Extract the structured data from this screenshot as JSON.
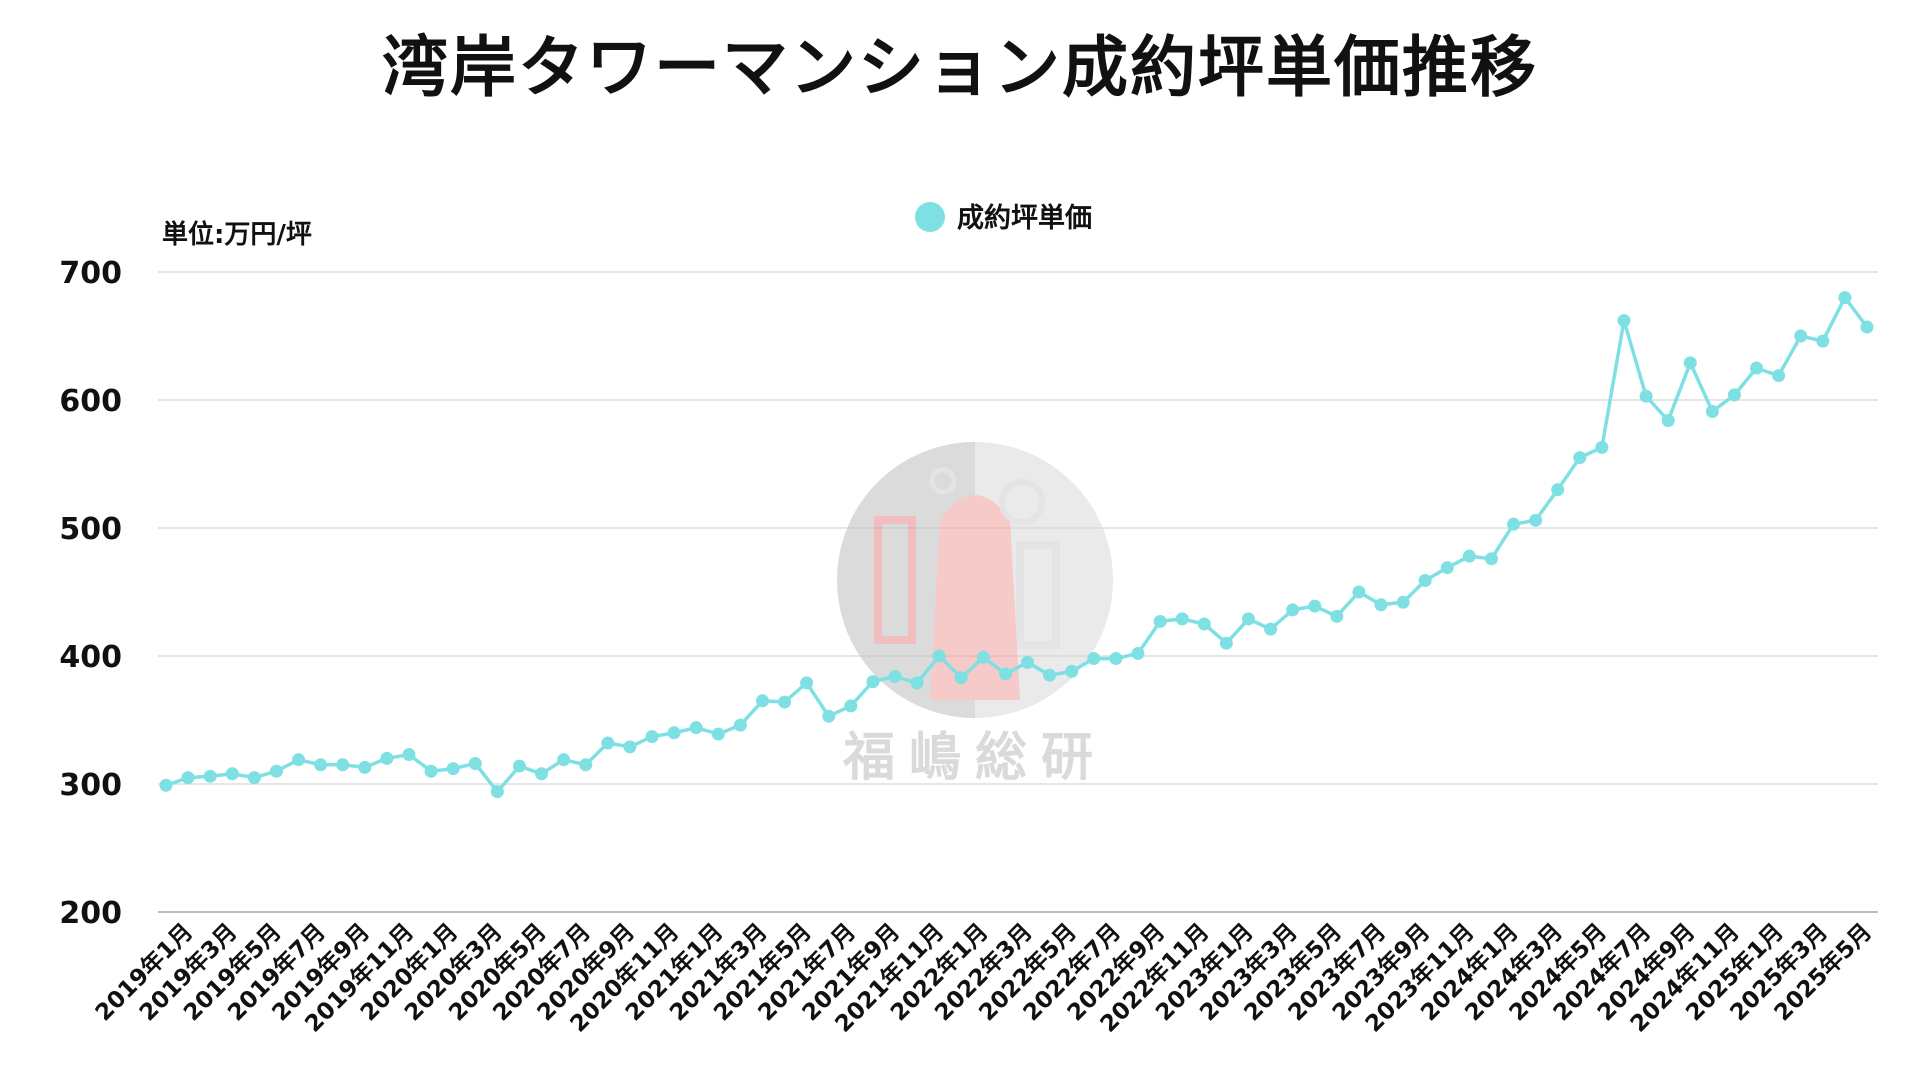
{
  "chart_data": {
    "type": "line",
    "title": "湾岸タワーマンション成約坪単価推移",
    "unit_label": "単位:万円/坪",
    "ylim": [
      200,
      700
    ],
    "y_ticks": [
      "200",
      "300",
      "400",
      "500",
      "600",
      "700"
    ],
    "grid": true,
    "legend_position": "top-center",
    "x_tick_labels": [
      "2019年1月",
      "2019年3月",
      "2019年5月",
      "2019年7月",
      "2019年9月",
      "2019年11月",
      "2020年1月",
      "2020年3月",
      "2020年5月",
      "2020年7月",
      "2020年9月",
      "2020年11月",
      "2021年1月",
      "2021年3月",
      "2021年5月",
      "2021年7月",
      "2021年9月",
      "2021年11月",
      "2022年1月",
      "2022年3月",
      "2022年5月",
      "2022年7月",
      "2022年9月",
      "2022年11月",
      "2023年1月",
      "2023年3月",
      "2023年5月",
      "2023年7月",
      "2023年9月",
      "2023年11月",
      "2024年1月",
      "2024年3月",
      "2024年5月",
      "2024年7月",
      "2024年9月",
      "2024年11月",
      "2025年1月",
      "2025年3月",
      "2025年5月"
    ],
    "series": [
      {
        "name": "成約坪単価",
        "color": "#7ee0e3",
        "values": [
          299,
          305,
          306,
          308,
          305,
          310,
          319,
          315,
          315,
          313,
          320,
          323,
          310,
          312,
          316,
          294,
          314,
          308,
          319,
          315,
          332,
          329,
          337,
          340,
          344,
          339,
          346,
          365,
          364,
          379,
          353,
          361,
          380,
          384,
          379,
          400,
          383,
          399,
          386,
          395,
          385,
          388,
          398,
          398,
          402,
          427,
          429,
          425,
          410,
          429,
          421,
          436,
          439,
          431,
          450,
          440,
          442,
          459,
          469,
          478,
          476,
          503,
          506,
          530,
          555,
          563,
          662,
          603,
          584,
          629,
          591,
          604,
          625,
          619,
          650,
          646,
          680,
          657
        ]
      }
    ]
  },
  "watermark": {
    "text": "福嶋総研"
  }
}
